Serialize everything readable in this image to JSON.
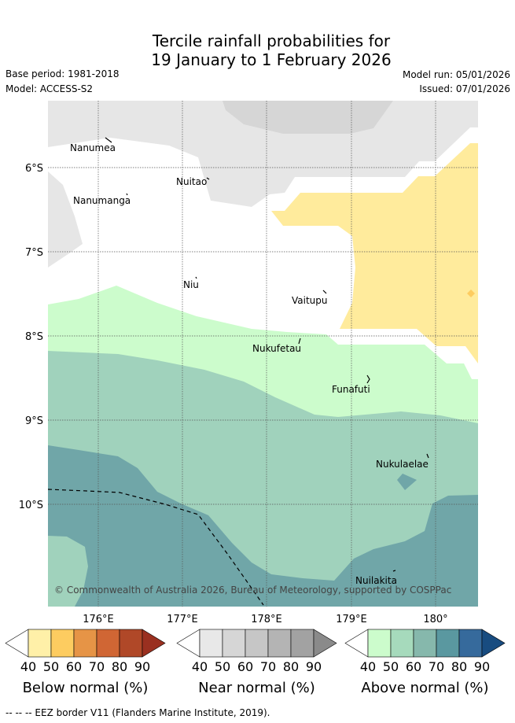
{
  "title": {
    "line1": "Tercile rainfall probabilities for",
    "line2": "19 January to 1 February 2026"
  },
  "meta": {
    "base_period": "Base period: 1981-2018",
    "model": "Model: ACCESS-S2",
    "model_run": "Model run: 05/01/2026",
    "issued": "Issued: 07/01/2026"
  },
  "axes": {
    "lat_labels": [
      "6°S",
      "7°S",
      "8°S",
      "9°S",
      "10°S"
    ],
    "lon_labels": [
      "176°E",
      "177°E",
      "178°E",
      "179°E",
      "180°"
    ]
  },
  "places": [
    "Nanumea",
    "Nuitao",
    "Nanumanga",
    "Niu",
    "Vaitupu",
    "Nukufetau",
    "Funafuti",
    "Nukulaelae",
    "Nuilakita"
  ],
  "credit": "© Commonwealth of Australia 2026, Bureau of Meteorology, supported by COSPPac",
  "colorbars": [
    {
      "title": "Below normal (%)",
      "ticks": [
        "40",
        "50",
        "60",
        "70",
        "80",
        "90"
      ],
      "colors": [
        "#ffffff",
        "#fff0a8",
        "#fdcc60",
        "#e69446",
        "#d06634",
        "#b04828",
        "#9a3020"
      ]
    },
    {
      "title": "Near normal (%)",
      "ticks": [
        "40",
        "50",
        "60",
        "70",
        "80",
        "90"
      ],
      "colors": [
        "#ffffff",
        "#e8e8e8",
        "#d6d6d6",
        "#c6c6c6",
        "#b4b4b4",
        "#a2a2a2",
        "#8a8a8a"
      ]
    },
    {
      "title": "Above normal (%)",
      "ticks": [
        "40",
        "50",
        "60",
        "70",
        "80",
        "90"
      ],
      "colors": [
        "#ffffff",
        "#ccfccc",
        "#a6dabc",
        "#86b8ac",
        "#5a98a0",
        "#366a9c",
        "#184c80"
      ]
    }
  ],
  "footnote": "--  --  -- EEZ border V11 (Flanders Marine Institute, 2019).",
  "colors": {
    "near40": "#e6e6e6",
    "near50": "#d6d6d6",
    "below40": "#ffeb9c",
    "above40": "#ccfccc",
    "above50": "#a0d2bc",
    "above70": "#70a6a8",
    "grid": "#555555"
  }
}
